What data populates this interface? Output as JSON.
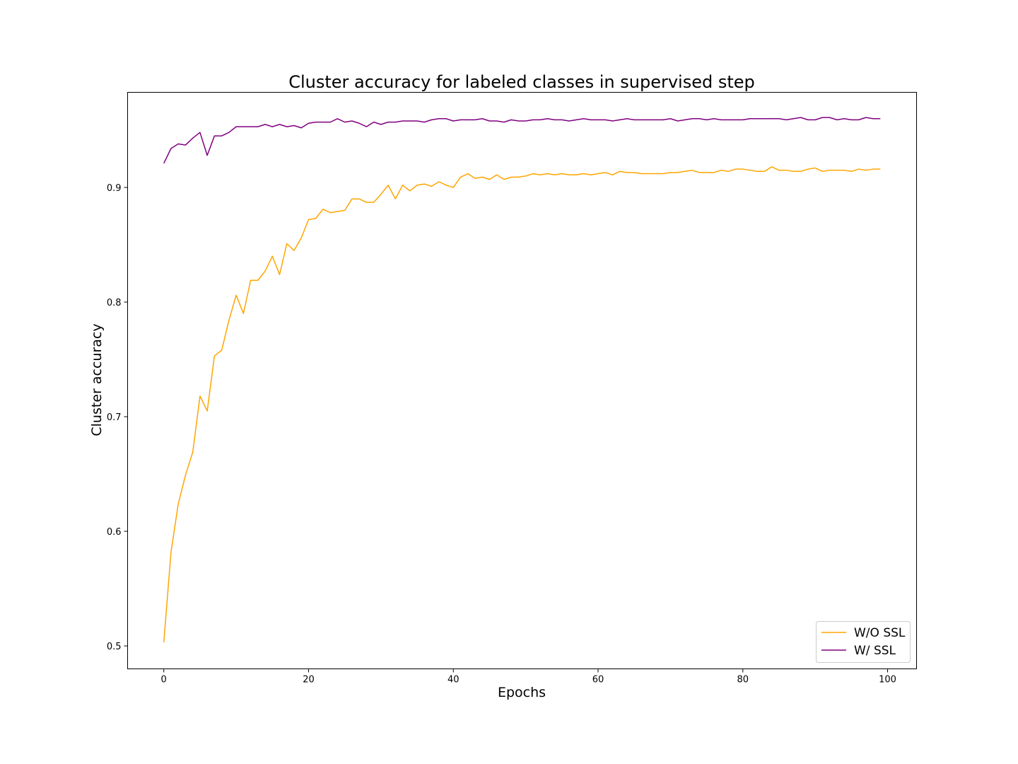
{
  "chart_data": {
    "type": "line",
    "title": "Cluster accuracy for labeled classes in supervised step",
    "xlabel": "Epochs",
    "ylabel": "Cluster accuracy",
    "xlim": [
      -5,
      104
    ],
    "ylim": [
      0.48,
      0.983
    ],
    "xticks": [
      0,
      20,
      40,
      60,
      80,
      100
    ],
    "xtick_labels": [
      "0",
      "20",
      "40",
      "60",
      "80",
      "100"
    ],
    "yticks": [
      0.5,
      0.6,
      0.7,
      0.8,
      0.9
    ],
    "ytick_labels": [
      "0.5",
      "0.6",
      "0.7",
      "0.8",
      "0.9"
    ],
    "grid": false,
    "legend_position": "bottom-right",
    "x": [
      0,
      1,
      2,
      3,
      4,
      5,
      6,
      7,
      8,
      9,
      10,
      11,
      12,
      13,
      14,
      15,
      16,
      17,
      18,
      19,
      20,
      21,
      22,
      23,
      24,
      25,
      26,
      27,
      28,
      29,
      30,
      31,
      32,
      33,
      34,
      35,
      36,
      37,
      38,
      39,
      40,
      41,
      42,
      43,
      44,
      45,
      46,
      47,
      48,
      49,
      50,
      51,
      52,
      53,
      54,
      55,
      56,
      57,
      58,
      59,
      60,
      61,
      62,
      63,
      64,
      65,
      66,
      67,
      68,
      69,
      70,
      71,
      72,
      73,
      74,
      75,
      76,
      77,
      78,
      79,
      80,
      81,
      82,
      83,
      84,
      85,
      86,
      87,
      88,
      89,
      90,
      91,
      92,
      93,
      94,
      95,
      96,
      97,
      98,
      99
    ],
    "series": [
      {
        "name": "W/O SSL",
        "color": "#ffa500",
        "values": [
          0.503,
          0.582,
          0.624,
          0.649,
          0.669,
          0.718,
          0.705,
          0.753,
          0.758,
          0.784,
          0.806,
          0.79,
          0.819,
          0.819,
          0.827,
          0.84,
          0.824,
          0.851,
          0.845,
          0.856,
          0.872,
          0.873,
          0.881,
          0.878,
          0.879,
          0.88,
          0.89,
          0.89,
          0.887,
          0.887,
          0.894,
          0.902,
          0.89,
          0.902,
          0.897,
          0.902,
          0.903,
          0.901,
          0.905,
          0.902,
          0.9,
          0.909,
          0.912,
          0.908,
          0.909,
          0.907,
          0.911,
          0.907,
          0.909,
          0.909,
          0.91,
          0.912,
          0.911,
          0.912,
          0.911,
          0.912,
          0.911,
          0.911,
          0.912,
          0.911,
          0.912,
          0.913,
          0.911,
          0.914,
          0.913,
          0.913,
          0.912,
          0.912,
          0.912,
          0.912,
          0.913,
          0.913,
          0.914,
          0.915,
          0.913,
          0.913,
          0.913,
          0.915,
          0.914,
          0.916,
          0.916,
          0.915,
          0.914,
          0.914,
          0.918,
          0.915,
          0.915,
          0.914,
          0.914,
          0.916,
          0.917,
          0.914,
          0.915,
          0.915,
          0.915,
          0.914,
          0.916,
          0.915,
          0.916,
          0.916
        ]
      },
      {
        "name": "W/ SSL",
        "color": "#800080",
        "values": [
          0.921,
          0.934,
          0.938,
          0.937,
          0.943,
          0.948,
          0.928,
          0.945,
          0.945,
          0.948,
          0.953,
          0.953,
          0.953,
          0.953,
          0.955,
          0.953,
          0.955,
          0.953,
          0.954,
          0.952,
          0.956,
          0.957,
          0.957,
          0.957,
          0.96,
          0.957,
          0.958,
          0.956,
          0.953,
          0.957,
          0.955,
          0.957,
          0.957,
          0.958,
          0.958,
          0.958,
          0.957,
          0.959,
          0.96,
          0.96,
          0.958,
          0.959,
          0.959,
          0.959,
          0.96,
          0.958,
          0.958,
          0.957,
          0.959,
          0.958,
          0.958,
          0.959,
          0.959,
          0.96,
          0.959,
          0.959,
          0.958,
          0.959,
          0.96,
          0.959,
          0.959,
          0.959,
          0.958,
          0.959,
          0.96,
          0.959,
          0.959,
          0.959,
          0.959,
          0.959,
          0.96,
          0.958,
          0.959,
          0.96,
          0.96,
          0.959,
          0.96,
          0.959,
          0.959,
          0.959,
          0.959,
          0.96,
          0.96,
          0.96,
          0.96,
          0.96,
          0.959,
          0.96,
          0.961,
          0.959,
          0.959,
          0.961,
          0.961,
          0.959,
          0.96,
          0.959,
          0.959,
          0.961,
          0.96,
          0.96
        ]
      }
    ]
  }
}
